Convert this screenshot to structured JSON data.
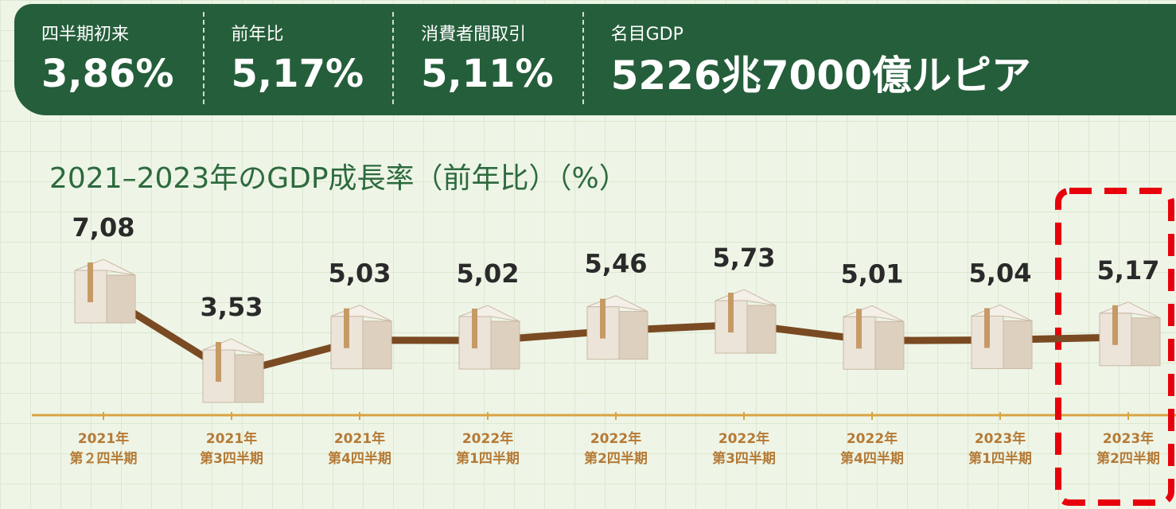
{
  "header": {
    "stats": [
      {
        "label": "四半期初来",
        "value": "3,86%"
      },
      {
        "label": "前年比",
        "value": "5,17%"
      },
      {
        "label": "消費者間取引",
        "value": "5,11%"
      },
      {
        "label": "名目GDP",
        "value": "5226兆7000億ルピア"
      }
    ]
  },
  "chart_data": {
    "type": "line",
    "title": "2021–2023年のGDP成長率（前年比）（%）",
    "categories": [
      "2021年\n第２四半期",
      "2021年\n第3四半期",
      "2021年\n第4四半期",
      "2022年\n第1四半期",
      "2022年\n第2四半期",
      "2022年\n第3四半期",
      "2022年\n第4四半期",
      "2023年\n第1四半期",
      "2023年\n第2四半期"
    ],
    "values": [
      7.08,
      3.53,
      5.03,
      5.02,
      5.46,
      5.73,
      5.01,
      5.04,
      5.17
    ],
    "value_labels": [
      "7,08",
      "3,53",
      "5,03",
      "5,02",
      "5,46",
      "5,73",
      "5,01",
      "5,04",
      "5,17"
    ],
    "color": "#7a4a22"
  }
}
